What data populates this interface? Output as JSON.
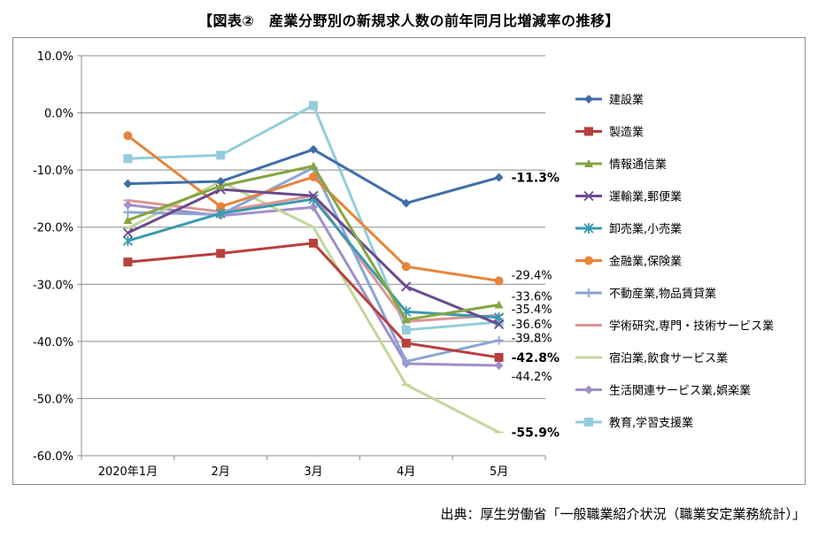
{
  "title": "【図表②　産業分野別の新規求人数の前年同月比増減率の推移】",
  "source": "出典：厚生労働省「一般職業紹介状況（職業安定業務統計）」",
  "chart_data": {
    "type": "line",
    "categories": [
      "2020年1月",
      "2月",
      "3月",
      "4月",
      "5月"
    ],
    "ylim": [
      -60,
      10
    ],
    "yticks": [
      "10.0%",
      "0.0%",
      "-10.0%",
      "-20.0%",
      "-30.0%",
      "-40.0%",
      "-50.0%",
      "-60.0%"
    ],
    "grid": "horizontal",
    "legend_position": "right",
    "series": [
      {
        "name": "建設業",
        "values": [
          -12.4,
          -12.0,
          -6.4,
          -15.8,
          -11.3
        ],
        "color": "#3f6ea6",
        "marker": "diamond",
        "end_label": "-11.3%",
        "end_bold": true
      },
      {
        "name": "製造業",
        "values": [
          -26.1,
          -24.6,
          -22.8,
          -40.3,
          -42.8
        ],
        "color": "#b8403d",
        "marker": "square",
        "end_label": "-42.8%",
        "end_bold": true
      },
      {
        "name": "情報通信業",
        "values": [
          -18.8,
          -12.8,
          -9.3,
          -36.2,
          -33.6
        ],
        "color": "#86a542",
        "marker": "triangle",
        "end_label": "-33.6%",
        "end_bold": false
      },
      {
        "name": "運輸業,郵便業",
        "values": [
          -21.0,
          -13.4,
          -14.5,
          -30.4,
          -37.0
        ],
        "color": "#6a4a8e",
        "marker": "x",
        "end_label": "",
        "end_bold": false
      },
      {
        "name": "卸売業,小売業",
        "values": [
          -22.4,
          -17.6,
          -15.1,
          -34.8,
          -35.8
        ],
        "color": "#3a9aae",
        "marker": "star",
        "end_label": "",
        "end_bold": false
      },
      {
        "name": "金融業,保険業",
        "values": [
          -4.0,
          -16.4,
          -11.2,
          -26.9,
          -29.4
        ],
        "color": "#e8843a",
        "marker": "circle",
        "end_label": "-29.4%",
        "end_bold": false
      },
      {
        "name": "不動産業,物品賃貸業",
        "values": [
          -17.4,
          -17.8,
          -9.6,
          -43.5,
          -39.8
        ],
        "color": "#8aa4d6",
        "marker": "plus",
        "end_label": "-39.8%",
        "end_bold": false
      },
      {
        "name": "学術研究,専門・技術サービス業",
        "values": [
          -15.3,
          -17.3,
          -14.5,
          -36.5,
          -35.4
        ],
        "color": "#d99694",
        "marker": "dash",
        "end_label": "-35.4%",
        "end_bold": false
      },
      {
        "name": "宿泊業,飲食サービス業",
        "values": [
          -20.2,
          -12.0,
          -20.0,
          -47.6,
          -55.9
        ],
        "color": "#c3d69b",
        "marker": "dash",
        "end_label": "-55.9%",
        "end_bold": true
      },
      {
        "name": "生活関連サービス業,娯楽業",
        "values": [
          -16.1,
          -18.0,
          -16.5,
          -43.9,
          -44.2
        ],
        "color": "#a18fc9",
        "marker": "diamond",
        "end_label": "-44.2%",
        "end_bold": false
      },
      {
        "name": "教育,学習支援業",
        "values": [
          -8.0,
          -7.4,
          1.3,
          -38.0,
          -36.6
        ],
        "color": "#93cddd",
        "marker": "square",
        "end_label": "-36.6%",
        "end_bold": false
      }
    ]
  }
}
